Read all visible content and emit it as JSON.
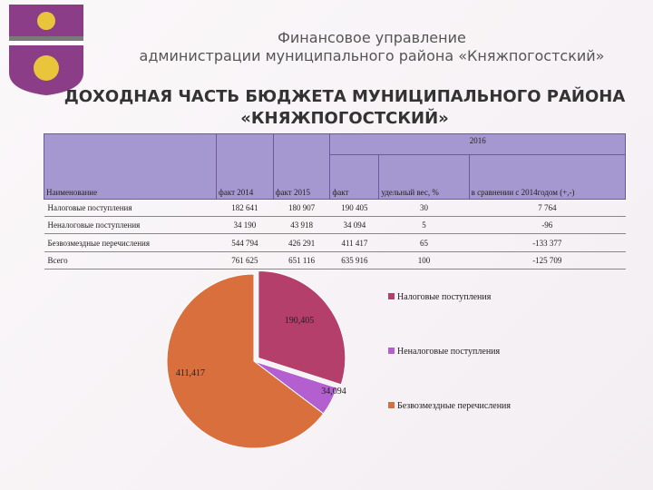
{
  "header": {
    "org_line1": "Финансовое управление",
    "org_line2": "администрации муниципального района «Княжпогостский»",
    "title_line1": "ДОХОДНАЯ ЧАСТЬ БЮДЖЕТА МУНИЦИПАЛЬНОГО РАЙОНА",
    "title_line2": "«КНЯЖПОГОСТСКИЙ»"
  },
  "table": {
    "columns": [
      "Наименование",
      "факт 2014",
      "факт 2015",
      "2016",
      "факт",
      "удельный вес, %",
      "в сравнении с 2014годом (+,-)"
    ],
    "rows": [
      [
        "Налоговые поступления",
        "182 641",
        "180 907",
        "190 405",
        "30",
        "7 764"
      ],
      [
        "Неналоговые поступления",
        "34 190",
        "43 918",
        "34 094",
        "5",
        "-96"
      ],
      [
        "Безвозмездные перечисления",
        "544 794",
        "426 291",
        "411 417",
        "65",
        "-133 377"
      ],
      [
        "Всего",
        "761 625",
        "651 116",
        "635 916",
        "100",
        "-125 709"
      ]
    ]
  },
  "chart_data": {
    "type": "pie",
    "categories": [
      "Налоговые поступления",
      "Неналоговые поступления",
      "Безвозмездные перечисления"
    ],
    "values": [
      190405,
      34094,
      411417
    ],
    "value_labels": [
      "190,405",
      "34,094",
      "411,417"
    ],
    "colors": [
      "#b43f6b",
      "#b35fd0",
      "#d96f3c"
    ]
  }
}
